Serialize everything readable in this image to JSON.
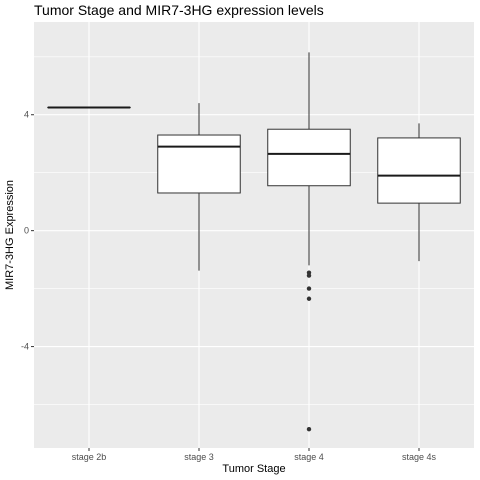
{
  "chart_data": {
    "type": "box",
    "title": "Tumor Stage and MIR7-3HG expression levels",
    "xlabel": "Tumor Stage",
    "ylabel": "MIR7-3HG Expression",
    "ylim": [
      -7.5,
      7.2
    ],
    "yticks": [
      -4,
      0,
      4
    ],
    "grid": true,
    "categories": [
      "stage 2b",
      "stage 3",
      "stage 4",
      "stage 4s"
    ],
    "boxes": [
      {
        "category": "stage 2b",
        "min": 4.25,
        "q1": 4.25,
        "median": 4.25,
        "q3": 4.25,
        "max": 4.25,
        "outliers": []
      },
      {
        "category": "stage 3",
        "min": -1.38,
        "q1": 1.3,
        "median": 2.9,
        "q3": 3.3,
        "max": 4.4,
        "outliers": []
      },
      {
        "category": "stage 4",
        "min": -1.2,
        "q1": 1.55,
        "median": 2.65,
        "q3": 3.5,
        "max": 6.15,
        "outliers": [
          -1.45,
          -1.55,
          -2.0,
          -2.35,
          -6.85
        ]
      },
      {
        "category": "stage 4s",
        "min": -1.05,
        "q1": 0.95,
        "median": 1.9,
        "q3": 3.2,
        "max": 3.7,
        "outliers": []
      }
    ],
    "colors": {
      "panel": "#ebebeb",
      "grid": "#ffffff",
      "box_fill": "#ffffff",
      "box_line": "#333333",
      "median": "#1a1a1a",
      "outlier": "#333333"
    }
  }
}
